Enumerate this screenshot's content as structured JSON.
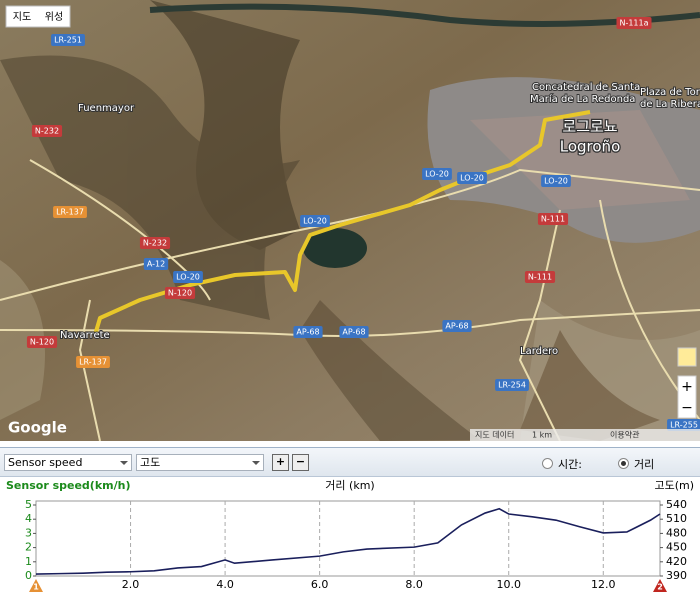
{
  "map": {
    "buttons": [
      "지도",
      "위성"
    ],
    "labels": [
      "LR-251",
      "Fuenmayor",
      "N-232",
      "LR-137",
      "N-232",
      "A-12",
      "LO-20",
      "N-120",
      "Navarrete",
      "LR-137",
      "AP-68",
      "AP-68",
      "AP-68",
      "LO-20",
      "LO-20",
      "LO-20",
      "LO-20",
      "N-111",
      "N-111",
      "Lardero",
      "LR-254",
      "LR-255",
      "N-111a",
      "Concatedral de Santa",
      "María de La Redonda",
      "Plaza de Toros",
      "de La Ribera",
      "로그로뇨",
      "Logroño",
      "N-120"
    ],
    "attribution": "Google",
    "footer": [
      "지도 데이터",
      "1 km",
      "이용약관"
    ]
  },
  "toolbar": {
    "select1": "Sensor speed",
    "select2": "고도",
    "plus": "+",
    "minus": "−",
    "radio1": "시간:",
    "radio2": "거리"
  },
  "chart_data": {
    "type": "line",
    "y_label": "Sensor speed(km/h)",
    "x_label": "거리 (km)",
    "y2_label": "고도(m)",
    "x": [
      0,
      0.5,
      1.0,
      1.5,
      2.0,
      2.5,
      3.0,
      3.5,
      4.0,
      4.2,
      5.0,
      6.0,
      6.5,
      7.0,
      8.0,
      8.5,
      9.0,
      9.5,
      9.8,
      10.0,
      10.5,
      11.0,
      11.5,
      12.0,
      12.5,
      13.0,
      13.2
    ],
    "series": [
      {
        "color": "#1a1f5c",
        "axis": "y2",
        "values": [
          394,
          395,
          396,
          398,
          399,
          401,
          407,
          410,
          424,
          417,
          424,
          432,
          441,
          447,
          451,
          460,
          498,
          523,
          532,
          521,
          515,
          508,
          494,
          481,
          483,
          508,
          521
        ]
      }
    ],
    "xlim": [
      0,
      13.2
    ],
    "xticks": [
      {
        "value": 2,
        "label": "2.0"
      },
      {
        "value": 4,
        "label": "4.0"
      },
      {
        "value": 6,
        "label": "6.0"
      },
      {
        "value": 8,
        "label": "8.0"
      },
      {
        "value": 10,
        "label": "10.0"
      },
      {
        "value": 12,
        "label": "12.0"
      }
    ],
    "ylim": [
      0,
      5
    ],
    "yticks": [
      0,
      1,
      2,
      3,
      4,
      5
    ],
    "y2lim": [
      390,
      540
    ],
    "y2ticks": [
      390,
      420,
      450,
      480,
      510,
      540
    ],
    "grid": true,
    "markers": [
      "1",
      "2"
    ]
  }
}
